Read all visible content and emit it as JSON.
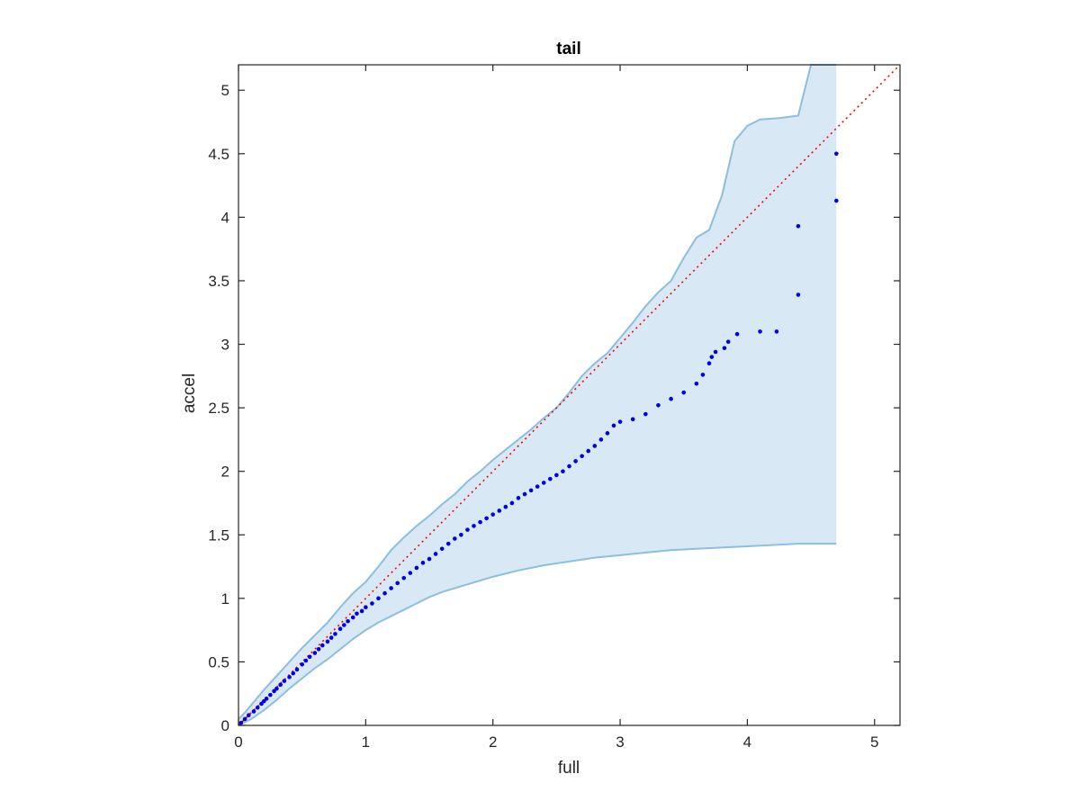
{
  "chart_data": {
    "type": "scatter",
    "title": "tail",
    "xlabel": "full",
    "ylabel": "accel",
    "xlim": [
      0,
      5.2
    ],
    "ylim": [
      0,
      5.2
    ],
    "xticks": [
      0,
      1,
      2,
      3,
      4,
      5
    ],
    "xtick_labels": [
      "0",
      "1",
      "2",
      "3",
      "4",
      "5"
    ],
    "yticks": [
      0,
      0.5,
      1,
      1.5,
      2,
      2.5,
      3,
      3.5,
      4,
      4.5,
      5
    ],
    "ytick_labels": [
      "0",
      "0.5",
      "1",
      "1.5",
      "2",
      "2.5",
      "3",
      "3.5",
      "4",
      "4.5",
      "5"
    ],
    "grid": false,
    "legend": "none",
    "colors": {
      "points": "#0000e6",
      "reference_line": "#ff0000",
      "band_fill": "#d8e8f4",
      "band_edge": "#8cbedd",
      "axes": "#262626"
    },
    "reference_line": {
      "style": "dotted",
      "x": [
        0,
        5.2
      ],
      "y": [
        0,
        5.2
      ]
    },
    "confidence_band": {
      "upper": [
        [
          0,
          0.05
        ],
        [
          0.05,
          0.1
        ],
        [
          0.1,
          0.16
        ],
        [
          0.2,
          0.28
        ],
        [
          0.3,
          0.39
        ],
        [
          0.4,
          0.5
        ],
        [
          0.5,
          0.61
        ],
        [
          0.6,
          0.71
        ],
        [
          0.7,
          0.81
        ],
        [
          0.8,
          0.93
        ],
        [
          0.9,
          1.04
        ],
        [
          1.0,
          1.13
        ],
        [
          1.1,
          1.25
        ],
        [
          1.2,
          1.38
        ],
        [
          1.3,
          1.48
        ],
        [
          1.4,
          1.57
        ],
        [
          1.5,
          1.65
        ],
        [
          1.6,
          1.74
        ],
        [
          1.7,
          1.82
        ],
        [
          1.8,
          1.92
        ],
        [
          1.9,
          2.0
        ],
        [
          2.0,
          2.09
        ],
        [
          2.1,
          2.17
        ],
        [
          2.2,
          2.25
        ],
        [
          2.3,
          2.33
        ],
        [
          2.4,
          2.42
        ],
        [
          2.5,
          2.5
        ],
        [
          2.6,
          2.62
        ],
        [
          2.7,
          2.75
        ],
        [
          2.8,
          2.85
        ],
        [
          2.9,
          2.93
        ],
        [
          3.0,
          3.05
        ],
        [
          3.1,
          3.17
        ],
        [
          3.2,
          3.3
        ],
        [
          3.3,
          3.41
        ],
        [
          3.4,
          3.5
        ],
        [
          3.5,
          3.68
        ],
        [
          3.6,
          3.84
        ],
        [
          3.7,
          3.9
        ],
        [
          3.8,
          4.17
        ],
        [
          3.9,
          4.6
        ],
        [
          4.0,
          4.72
        ],
        [
          4.1,
          4.77
        ],
        [
          4.25,
          4.78
        ],
        [
          4.4,
          4.8
        ],
        [
          4.5,
          5.2
        ],
        [
          4.7,
          5.2
        ]
      ],
      "lower": [
        [
          0,
          0
        ],
        [
          0.1,
          0.05
        ],
        [
          0.2,
          0.12
        ],
        [
          0.3,
          0.2
        ],
        [
          0.4,
          0.29
        ],
        [
          0.5,
          0.37
        ],
        [
          0.6,
          0.45
        ],
        [
          0.7,
          0.52
        ],
        [
          0.8,
          0.6
        ],
        [
          0.9,
          0.68
        ],
        [
          1.0,
          0.75
        ],
        [
          1.1,
          0.81
        ],
        [
          1.2,
          0.86
        ],
        [
          1.3,
          0.91
        ],
        [
          1.4,
          0.96
        ],
        [
          1.5,
          1.01
        ],
        [
          1.6,
          1.05
        ],
        [
          1.7,
          1.08
        ],
        [
          1.8,
          1.11
        ],
        [
          1.9,
          1.14
        ],
        [
          2.0,
          1.17
        ],
        [
          2.2,
          1.22
        ],
        [
          2.4,
          1.26
        ],
        [
          2.6,
          1.29
        ],
        [
          2.8,
          1.32
        ],
        [
          3.0,
          1.34
        ],
        [
          3.2,
          1.36
        ],
        [
          3.4,
          1.38
        ],
        [
          3.6,
          1.39
        ],
        [
          3.8,
          1.4
        ],
        [
          4.0,
          1.41
        ],
        [
          4.2,
          1.42
        ],
        [
          4.4,
          1.43
        ],
        [
          4.7,
          1.43
        ]
      ]
    },
    "series": [
      {
        "values": [
          [
            0.02,
            0.02
          ],
          [
            0.05,
            0.05
          ],
          [
            0.08,
            0.08
          ],
          [
            0.12,
            0.11
          ],
          [
            0.15,
            0.14
          ],
          [
            0.18,
            0.17
          ],
          [
            0.2,
            0.19
          ],
          [
            0.22,
            0.21
          ],
          [
            0.25,
            0.24
          ],
          [
            0.28,
            0.27
          ],
          [
            0.3,
            0.29
          ],
          [
            0.33,
            0.32
          ],
          [
            0.36,
            0.35
          ],
          [
            0.4,
            0.38
          ],
          [
            0.43,
            0.41
          ],
          [
            0.46,
            0.44
          ],
          [
            0.5,
            0.48
          ],
          [
            0.53,
            0.51
          ],
          [
            0.56,
            0.54
          ],
          [
            0.6,
            0.57
          ],
          [
            0.63,
            0.6
          ],
          [
            0.66,
            0.63
          ],
          [
            0.7,
            0.66
          ],
          [
            0.73,
            0.69
          ],
          [
            0.76,
            0.72
          ],
          [
            0.8,
            0.76
          ],
          [
            0.83,
            0.79
          ],
          [
            0.86,
            0.82
          ],
          [
            0.9,
            0.85
          ],
          [
            0.93,
            0.88
          ],
          [
            0.97,
            0.9
          ],
          [
            1.0,
            0.93
          ],
          [
            1.05,
            0.96
          ],
          [
            1.1,
            1.0
          ],
          [
            1.15,
            1.04
          ],
          [
            1.2,
            1.08
          ],
          [
            1.25,
            1.12
          ],
          [
            1.3,
            1.16
          ],
          [
            1.35,
            1.2
          ],
          [
            1.4,
            1.24
          ],
          [
            1.45,
            1.28
          ],
          [
            1.5,
            1.31
          ],
          [
            1.55,
            1.35
          ],
          [
            1.6,
            1.39
          ],
          [
            1.65,
            1.43
          ],
          [
            1.7,
            1.47
          ],
          [
            1.75,
            1.5
          ],
          [
            1.8,
            1.54
          ],
          [
            1.85,
            1.57
          ],
          [
            1.9,
            1.6
          ],
          [
            1.95,
            1.63
          ],
          [
            2.0,
            1.66
          ],
          [
            2.05,
            1.69
          ],
          [
            2.1,
            1.72
          ],
          [
            2.15,
            1.75
          ],
          [
            2.2,
            1.79
          ],
          [
            2.25,
            1.82
          ],
          [
            2.3,
            1.85
          ],
          [
            2.35,
            1.88
          ],
          [
            2.4,
            1.91
          ],
          [
            2.45,
            1.94
          ],
          [
            2.5,
            1.97
          ],
          [
            2.55,
            2.0
          ],
          [
            2.6,
            2.04
          ],
          [
            2.65,
            2.08
          ],
          [
            2.7,
            2.12
          ],
          [
            2.75,
            2.16
          ],
          [
            2.8,
            2.2
          ],
          [
            2.85,
            2.25
          ],
          [
            2.9,
            2.3
          ],
          [
            2.95,
            2.36
          ],
          [
            3.0,
            2.39
          ],
          [
            3.1,
            2.41
          ],
          [
            3.2,
            2.45
          ],
          [
            3.3,
            2.52
          ],
          [
            3.4,
            2.57
          ],
          [
            3.5,
            2.62
          ],
          [
            3.6,
            2.69
          ],
          [
            3.65,
            2.76
          ],
          [
            3.7,
            2.85
          ],
          [
            3.72,
            2.9
          ],
          [
            3.75,
            2.94
          ],
          [
            3.82,
            2.97
          ],
          [
            3.85,
            3.02
          ],
          [
            3.92,
            3.08
          ],
          [
            4.1,
            3.1
          ],
          [
            4.23,
            3.1
          ],
          [
            4.4,
            3.39
          ],
          [
            4.4,
            3.93
          ],
          [
            4.7,
            4.13
          ],
          [
            4.7,
            4.5
          ]
        ]
      }
    ]
  }
}
